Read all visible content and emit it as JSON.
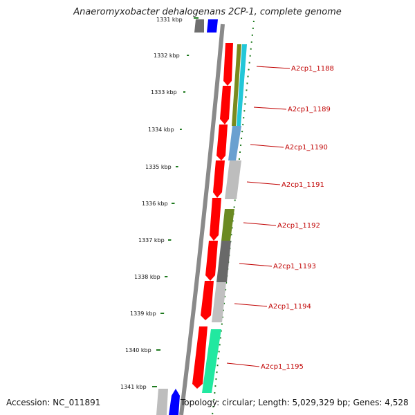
{
  "title": "Anaeromyxobacter dehalogenans 2CP-1, complete genome",
  "footer": {
    "accession": "Accession: NC_011891",
    "summary": "Topology: circular; Length: 5,029,329 bp; Genes: 4,528"
  },
  "ticks": [
    "1331 kbp",
    "1332 kbp",
    "1333 kbp",
    "1334 kbp",
    "1335 kbp",
    "1336 kbp",
    "1337 kbp",
    "1338 kbp",
    "1339 kbp",
    "1340 kbp",
    "1341 kbp"
  ],
  "genes": [
    "A2cp1_1188",
    "A2cp1_1189",
    "A2cp1_1190",
    "A2cp1_1191",
    "A2cp1_1192",
    "A2cp1_1193",
    "A2cp1_1194",
    "A2cp1_1195"
  ],
  "colors": {
    "gene_arrow": "#ff0000",
    "backbone": "#808080",
    "tick_marks": "#1f7a1f",
    "gene_label": "#c00000"
  }
}
